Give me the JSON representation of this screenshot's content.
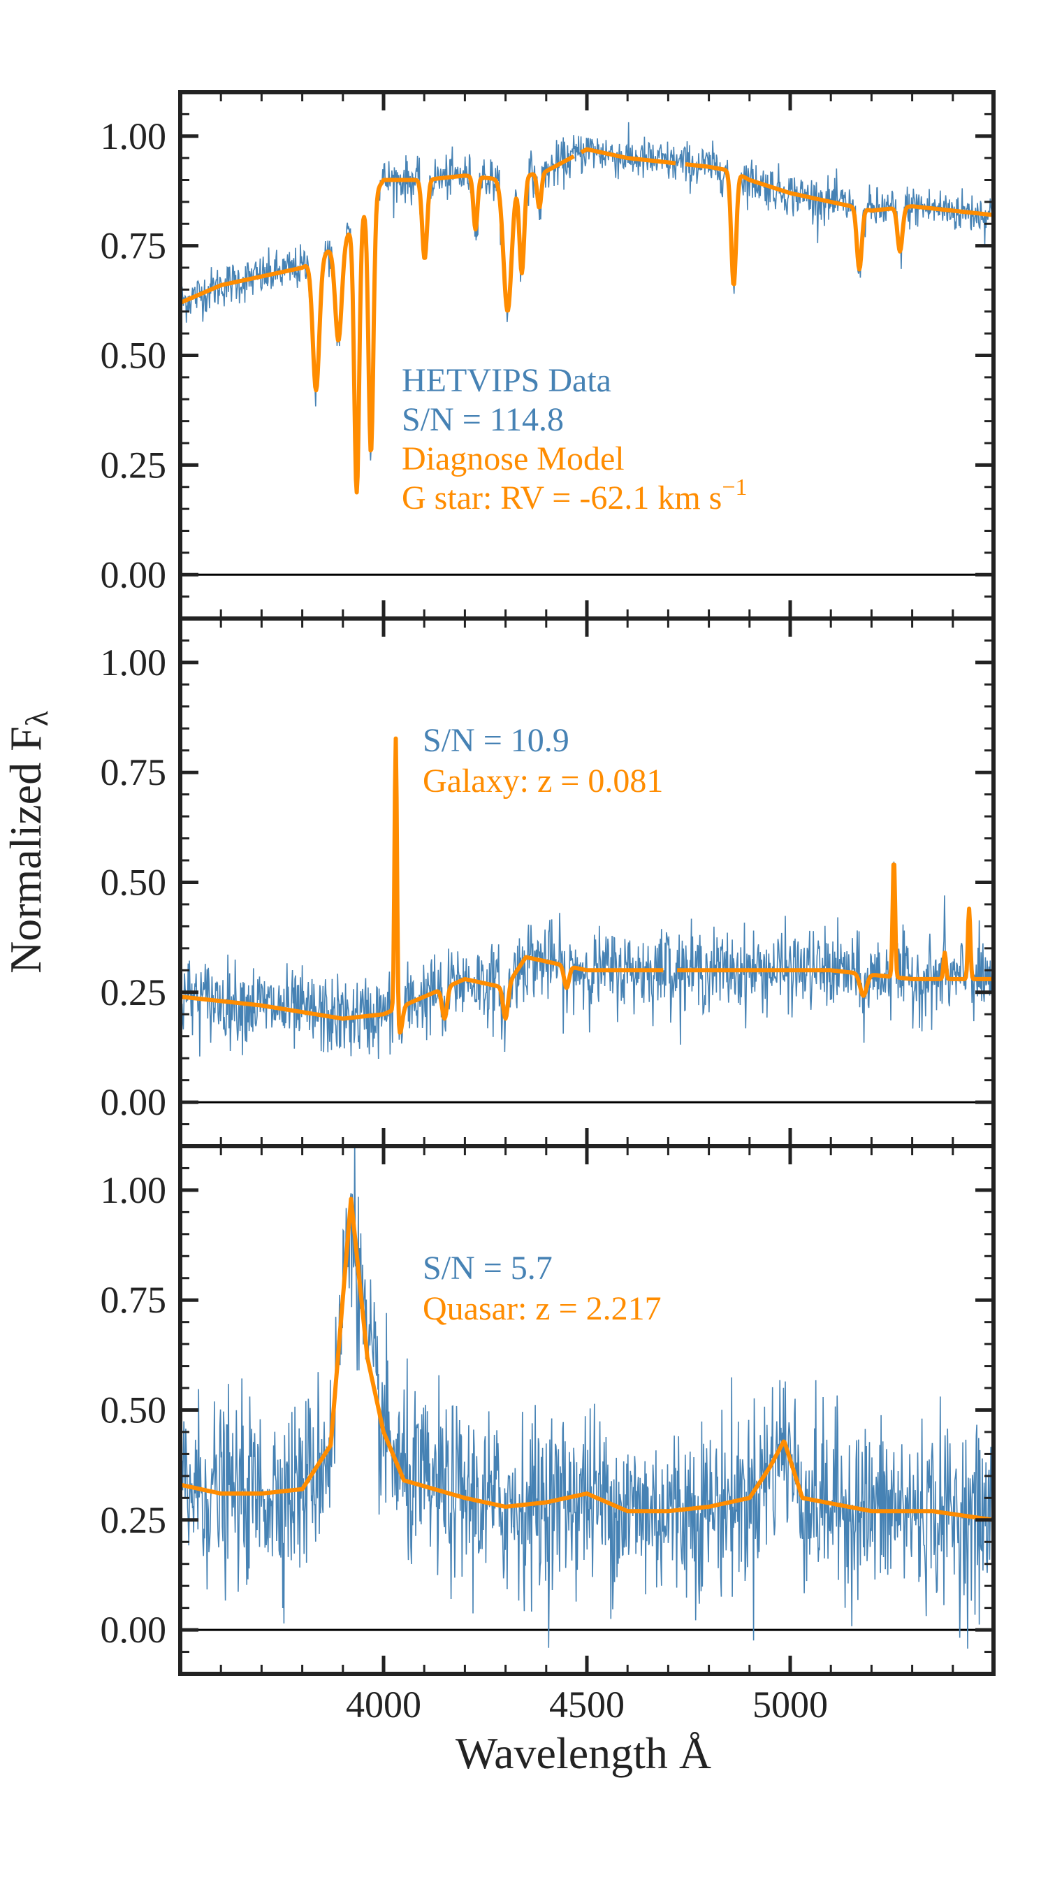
{
  "figure": {
    "ylabel": "Normalized F",
    "ylabel_sub": "λ",
    "xlabel": "Wavelength Å",
    "xlim": [
      3500,
      5500
    ]
  },
  "colors": {
    "data": "#4682b4",
    "model": "#ff8c00",
    "axis": "#222222"
  },
  "chart_data": [
    {
      "type": "line",
      "panel": "top",
      "xlim": [
        3500,
        5500
      ],
      "ylim": [
        -0.1,
        1.1
      ],
      "yticks": [
        0.0,
        0.25,
        0.5,
        0.75,
        1.0
      ],
      "ytick_labels": [
        "0.00",
        "0.25",
        "0.50",
        "0.75",
        "1.00"
      ],
      "xticks": [
        4000,
        4500,
        5000
      ],
      "xtick_labels": [
        "4000",
        "4500",
        "5000"
      ],
      "show_xtick_labels": false,
      "zero_line": true,
      "noise": 0.025,
      "continuum": [
        [
          3500,
          0.62
        ],
        [
          3600,
          0.66
        ],
        [
          3700,
          0.68
        ],
        [
          3800,
          0.7
        ],
        [
          3900,
          0.76
        ],
        [
          4000,
          0.9
        ],
        [
          4100,
          0.9
        ],
        [
          4200,
          0.91
        ],
        [
          4300,
          0.9
        ],
        [
          4400,
          0.92
        ],
        [
          4500,
          0.97
        ],
        [
          4600,
          0.95
        ],
        [
          4700,
          0.94
        ],
        [
          4800,
          0.93
        ],
        [
          4860,
          0.92
        ],
        [
          4900,
          0.9
        ],
        [
          5000,
          0.87
        ],
        [
          5100,
          0.85
        ],
        [
          5200,
          0.83
        ],
        [
          5300,
          0.84
        ],
        [
          5400,
          0.83
        ],
        [
          5500,
          0.82
        ]
      ],
      "features": [
        {
          "x": 3834,
          "depth": -0.3,
          "width": 8
        },
        {
          "x": 3889,
          "depth": -0.22,
          "width": 8
        },
        {
          "x": 3934,
          "depth": -0.62,
          "width": 6
        },
        {
          "x": 3969,
          "depth": -0.58,
          "width": 6
        },
        {
          "x": 4101,
          "depth": -0.18,
          "width": 6
        },
        {
          "x": 4226,
          "depth": -0.12,
          "width": 5
        },
        {
          "x": 4305,
          "depth": -0.3,
          "width": 10
        },
        {
          "x": 4340,
          "depth": -0.22,
          "width": 6
        },
        {
          "x": 4383,
          "depth": -0.08,
          "width": 5
        },
        {
          "x": 4861,
          "depth": -0.26,
          "width": 6
        },
        {
          "x": 5170,
          "depth": -0.14,
          "width": 6
        },
        {
          "x": 5270,
          "depth": -0.1,
          "width": 6
        }
      ],
      "model_gaps": [
        [
          4470,
          4485
        ],
        [
          4720,
          4740
        ]
      ],
      "annotations": [
        {
          "text": "HETVIPS Data",
          "color": "data"
        },
        {
          "text": "S/N  =  114.8",
          "color": "data"
        },
        {
          "text": "Diagnose Model",
          "color": "model"
        },
        {
          "text": "G star: RV = -62.1 km s",
          "superscript": "−1",
          "color": "model"
        }
      ]
    },
    {
      "type": "line",
      "panel": "middle",
      "xlim": [
        3500,
        5500
      ],
      "ylim": [
        -0.1,
        1.1
      ],
      "yticks": [
        0.0,
        0.25,
        0.5,
        0.75,
        1.0
      ],
      "ytick_labels": [
        "0.00",
        "0.25",
        "0.50",
        "0.75",
        "1.00"
      ],
      "xticks": [
        4000,
        4500,
        5000
      ],
      "xtick_labels": [
        "4000",
        "4500",
        "5000"
      ],
      "show_xtick_labels": false,
      "zero_line": true,
      "noise": 0.045,
      "continuum": [
        [
          3500,
          0.24
        ],
        [
          3700,
          0.22
        ],
        [
          3900,
          0.19
        ],
        [
          4000,
          0.2
        ],
        [
          4100,
          0.24
        ],
        [
          4200,
          0.28
        ],
        [
          4300,
          0.26
        ],
        [
          4350,
          0.33
        ],
        [
          4500,
          0.3
        ],
        [
          4700,
          0.3
        ],
        [
          4900,
          0.3
        ],
        [
          5100,
          0.3
        ],
        [
          5300,
          0.28
        ],
        [
          5500,
          0.28
        ]
      ],
      "features": [
        {
          "x": 4030,
          "depth": 0.63,
          "width": 3
        },
        {
          "x": 4040,
          "depth": -0.06,
          "width": 6
        },
        {
          "x": 4150,
          "depth": -0.07,
          "width": 6
        },
        {
          "x": 4300,
          "depth": -0.07,
          "width": 6
        },
        {
          "x": 4450,
          "depth": -0.05,
          "width": 6
        },
        {
          "x": 4700,
          "depth": 0.06,
          "width": 3
        },
        {
          "x": 5180,
          "depth": -0.05,
          "width": 8
        },
        {
          "x": 5255,
          "depth": 0.27,
          "width": 3
        },
        {
          "x": 5380,
          "depth": 0.06,
          "width": 3
        },
        {
          "x": 5440,
          "depth": 0.16,
          "width": 3
        }
      ],
      "model_gaps": [
        [
          4690,
          4720
        ]
      ],
      "annotations": [
        {
          "text": "S/N  =  10.9",
          "color": "data"
        },
        {
          "text": "Galaxy: z = 0.081",
          "color": "model"
        }
      ]
    },
    {
      "type": "line",
      "panel": "bottom",
      "xlim": [
        3500,
        5500
      ],
      "ylim": [
        -0.1,
        1.1
      ],
      "yticks": [
        0.0,
        0.25,
        0.5,
        0.75,
        1.0
      ],
      "ytick_labels": [
        "0.00",
        "0.25",
        "0.50",
        "0.75",
        "1.00"
      ],
      "xticks": [
        4000,
        4500,
        5000
      ],
      "xtick_labels": [
        "4000",
        "4500",
        "5000"
      ],
      "show_xtick_labels": true,
      "zero_line": true,
      "noise": 0.1,
      "continuum": [
        [
          3500,
          0.33
        ],
        [
          3600,
          0.31
        ],
        [
          3700,
          0.31
        ],
        [
          3800,
          0.32
        ],
        [
          3870,
          0.42
        ],
        [
          3920,
          0.98
        ],
        [
          3960,
          0.62
        ],
        [
          4000,
          0.45
        ],
        [
          4050,
          0.34
        ],
        [
          4200,
          0.3
        ],
        [
          4300,
          0.28
        ],
        [
          4400,
          0.29
        ],
        [
          4500,
          0.31
        ],
        [
          4600,
          0.27
        ],
        [
          4700,
          0.27
        ],
        [
          4800,
          0.28
        ],
        [
          4900,
          0.3
        ],
        [
          4950,
          0.37
        ],
        [
          4985,
          0.43
        ],
        [
          5030,
          0.3
        ],
        [
          5200,
          0.27
        ],
        [
          5350,
          0.27
        ],
        [
          5500,
          0.25
        ]
      ],
      "features": [],
      "model_gaps": [],
      "annotations": [
        {
          "text": "S/N  =  5.7",
          "color": "data"
        },
        {
          "text": "Quasar: z = 2.217",
          "color": "model"
        }
      ]
    }
  ]
}
